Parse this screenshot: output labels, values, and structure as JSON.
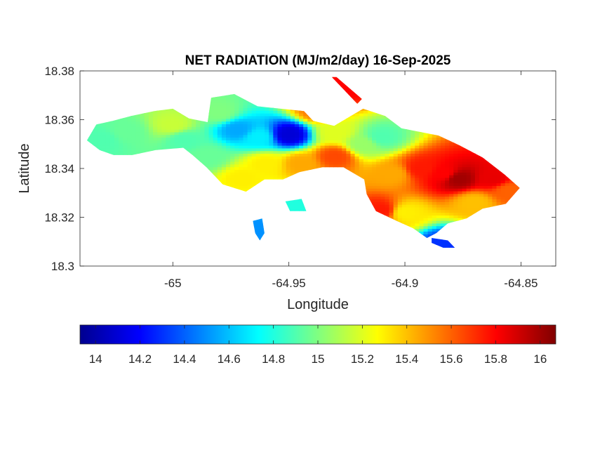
{
  "chart_data": {
    "type": "heatmap",
    "title": "NET RADIATION (MJ/m2/day) 16-Sep-2025",
    "xlabel": "Longitude",
    "ylabel": "Latitude",
    "xlim": [
      -65.04,
      -64.835
    ],
    "ylim": [
      18.3,
      18.38
    ],
    "xticks": [
      -65,
      -64.95,
      -64.9,
      -64.85
    ],
    "xtick_labels": [
      "-65",
      "-64.95",
      "-64.9",
      "-64.85"
    ],
    "yticks": [
      18.3,
      18.32,
      18.34,
      18.36,
      18.38
    ],
    "ytick_labels": [
      "18.3",
      "18.32",
      "18.34",
      "18.36",
      "18.38"
    ],
    "grid": false,
    "colormap": "jet",
    "colorbar": {
      "orientation": "horizontal",
      "placement": "below",
      "clim": [
        13.93,
        16.07
      ],
      "ticks": [
        14,
        14.2,
        14.4,
        14.6,
        14.8,
        15,
        15.2,
        15.4,
        15.6,
        15.8,
        16
      ],
      "tick_labels": [
        "14",
        "14.2",
        "14.4",
        "14.6",
        "14.8",
        "15",
        "15.2",
        "15.4",
        "15.6",
        "15.8",
        "16"
      ]
    },
    "colors": {
      "jet": [
        "#00008f",
        "#0000ff",
        "#0080ff",
        "#00ffff",
        "#80ff80",
        "#ffff00",
        "#ff8000",
        "#ff0000",
        "#800000"
      ],
      "axes": "#262626",
      "background": "#ffffff"
    },
    "land_outline": [
      [
        -65.037,
        18.3515
      ],
      [
        -65.033,
        18.358
      ],
      [
        -65.026,
        18.3595
      ],
      [
        -65.018,
        18.3615
      ],
      [
        -65.008,
        18.3635
      ],
      [
        -65.0,
        18.3645
      ],
      [
        -64.993,
        18.3605
      ],
      [
        -64.985,
        18.359
      ],
      [
        -64.9835,
        18.369
      ],
      [
        -64.9735,
        18.3705
      ],
      [
        -64.9635,
        18.3655
      ],
      [
        -64.9535,
        18.3645
      ],
      [
        -64.9435,
        18.3635
      ],
      [
        -64.9395,
        18.3595
      ],
      [
        -64.9305,
        18.3575
      ],
      [
        -64.918,
        18.3645
      ],
      [
        -64.9085,
        18.3615
      ],
      [
        -64.9015,
        18.3565
      ],
      [
        -64.8855,
        18.3535
      ],
      [
        -64.8765,
        18.3495
      ],
      [
        -64.8665,
        18.3445
      ],
      [
        -64.857,
        18.3375
      ],
      [
        -64.8505,
        18.332
      ],
      [
        -64.8565,
        18.3255
      ],
      [
        -64.8665,
        18.3235
      ],
      [
        -64.8735,
        18.3195
      ],
      [
        -64.8815,
        18.3175
      ],
      [
        -64.8865,
        18.3135
      ],
      [
        -64.8905,
        18.3115
      ],
      [
        -64.8965,
        18.3155
      ],
      [
        -64.9035,
        18.3185
      ],
      [
        -64.9125,
        18.3225
      ],
      [
        -64.9165,
        18.3295
      ],
      [
        -64.9175,
        18.3355
      ],
      [
        -64.9265,
        18.3405
      ],
      [
        -64.9355,
        18.3405
      ],
      [
        -64.9455,
        18.3385
      ],
      [
        -64.9525,
        18.3355
      ],
      [
        -64.9605,
        18.3355
      ],
      [
        -64.9685,
        18.3305
      ],
      [
        -64.9785,
        18.3335
      ],
      [
        -64.9855,
        18.3405
      ],
      [
        -64.9915,
        18.3455
      ],
      [
        -64.9955,
        18.3485
      ],
      [
        -65.0075,
        18.3475
      ],
      [
        -65.0175,
        18.3455
      ],
      [
        -65.0255,
        18.3455
      ],
      [
        -65.0315,
        18.3475
      ]
    ],
    "islets": [
      [
        [
          -64.9655,
          18.3185
        ],
        [
          -64.9645,
          18.3135
        ],
        [
          -64.9625,
          18.3105
        ],
        [
          -64.9605,
          18.3135
        ],
        [
          -64.9615,
          18.3195
        ]
      ],
      [
        [
          -64.9515,
          18.3265
        ],
        [
          -64.9445,
          18.3275
        ],
        [
          -64.9425,
          18.3225
        ],
        [
          -64.9495,
          18.3225
        ]
      ],
      [
        [
          -64.8885,
          18.3115
        ],
        [
          -64.8815,
          18.3105
        ],
        [
          -64.8785,
          18.3075
        ],
        [
          -64.8835,
          18.3075
        ],
        [
          -64.8885,
          18.3095
        ]
      ],
      [
        [
          -64.9315,
          18.3775
        ],
        [
          -64.9295,
          18.3775
        ],
        [
          -64.9185,
          18.3685
        ],
        [
          -64.9205,
          18.3665
        ]
      ]
    ],
    "field_anchors": [
      {
        "lon": -65.02,
        "lat": 18.355,
        "value": 14.95
      },
      {
        "lon": -65.0,
        "lat": 18.358,
        "value": 15.15
      },
      {
        "lon": -64.995,
        "lat": 18.352,
        "value": 14.9
      },
      {
        "lon": -64.98,
        "lat": 18.363,
        "value": 15.0
      },
      {
        "lon": -64.972,
        "lat": 18.356,
        "value": 14.55
      },
      {
        "lon": -64.963,
        "lat": 18.353,
        "value": 14.7
      },
      {
        "lon": -64.95,
        "lat": 18.354,
        "value": 14.1
      },
      {
        "lon": -64.96,
        "lat": 18.342,
        "value": 15.3
      },
      {
        "lon": -64.945,
        "lat": 18.342,
        "value": 15.45
      },
      {
        "lon": -64.938,
        "lat": 18.364,
        "value": 15.55
      },
      {
        "lon": -64.93,
        "lat": 18.345,
        "value": 15.65
      },
      {
        "lon": -64.93,
        "lat": 18.355,
        "value": 15.2
      },
      {
        "lon": -64.918,
        "lat": 18.35,
        "value": 15.05
      },
      {
        "lon": -64.91,
        "lat": 18.353,
        "value": 14.9
      },
      {
        "lon": -64.905,
        "lat": 18.338,
        "value": 15.45
      },
      {
        "lon": -64.893,
        "lat": 18.34,
        "value": 15.75
      },
      {
        "lon": -64.883,
        "lat": 18.338,
        "value": 15.8
      },
      {
        "lon": -64.877,
        "lat": 18.336,
        "value": 16.0
      },
      {
        "lon": -64.862,
        "lat": 18.336,
        "value": 15.85
      },
      {
        "lon": -64.87,
        "lat": 18.326,
        "value": 15.4
      },
      {
        "lon": -64.9,
        "lat": 18.322,
        "value": 15.3
      },
      {
        "lon": -64.91,
        "lat": 18.323,
        "value": 15.75
      },
      {
        "lon": -64.855,
        "lat": 18.331,
        "value": 15.6
      },
      {
        "lon": -65.03,
        "lat": 18.352,
        "value": 14.9
      },
      {
        "lon": -64.985,
        "lat": 18.345,
        "value": 14.95
      },
      {
        "lon": -64.97,
        "lat": 18.336,
        "value": 15.3
      },
      {
        "lon": -64.963,
        "lat": 18.315,
        "value": 14.5
      },
      {
        "lon": -64.947,
        "lat": 18.325,
        "value": 14.8
      },
      {
        "lon": -64.883,
        "lat": 18.309,
        "value": 14.3
      },
      {
        "lon": -64.925,
        "lat": 18.373,
        "value": 15.8
      }
    ]
  }
}
